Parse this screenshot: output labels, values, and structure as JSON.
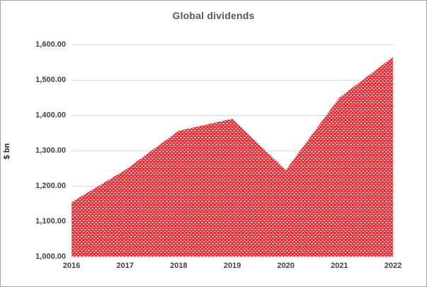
{
  "chart_data": {
    "type": "area",
    "title": "Global dividends",
    "xlabel": "",
    "ylabel": "$ bn",
    "categories": [
      "2016",
      "2017",
      "2018",
      "2019",
      "2020",
      "2021",
      "2022"
    ],
    "series": [
      {
        "name": "Global dividends",
        "values": [
          1154,
          1245,
          1356,
          1390,
          1245,
          1450,
          1565
        ]
      }
    ],
    "ylim": [
      1000,
      1600
    ],
    "yticks": [
      {
        "value": 1600,
        "label": "1,600.00"
      },
      {
        "value": 1500,
        "label": "1,500.00"
      },
      {
        "value": 1400,
        "label": "1,400.00"
      },
      {
        "value": 1300,
        "label": "1,300.00"
      },
      {
        "value": 1200,
        "label": "1,200.00"
      },
      {
        "value": 1100,
        "label": "1,100.00"
      },
      {
        "value": 1000,
        "label": "1,000.00"
      }
    ],
    "grid": true,
    "legend": "none",
    "pattern": "white-dash-bricks-on-red",
    "colors": {
      "area_fill": "#ed1c24",
      "pattern_dash": "#ffffff",
      "gridline": "#d9d9d9",
      "title_text": "#595959",
      "tick_text": "#3f3f3f",
      "axis_title_text": "#1a1a1a",
      "frame_border": "#a3a3a3"
    }
  }
}
